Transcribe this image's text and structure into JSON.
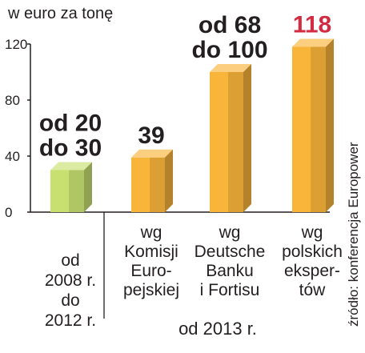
{
  "chart_data": {
    "type": "bar",
    "title": "",
    "ylabel": "w euro za tonę",
    "xlabel": "",
    "ylim": [
      0,
      120
    ],
    "yticks": [
      0,
      40,
      80,
      120
    ],
    "grid": false,
    "legend": "none",
    "bars": [
      {
        "low": 20,
        "high": 30,
        "value": 30,
        "label_lines": [
          "od 20",
          "do 30"
        ],
        "category_lines": [
          "od",
          "2008 r.",
          "do",
          "2012 r."
        ],
        "color": "#c8e070",
        "label_color": "#231f20"
      },
      {
        "value": 39,
        "label_lines": [
          "39"
        ],
        "category_lines": [
          "wg",
          "Komisji",
          "Euro-",
          "pejskiej"
        ],
        "color": "#f9b53a",
        "label_color": "#231f20"
      },
      {
        "low": 68,
        "high": 100,
        "value": 100,
        "label_lines": [
          "od 68",
          "do 100"
        ],
        "category_lines": [
          "wg",
          "Deutsche",
          "Banku",
          "i Fortisu"
        ],
        "color": "#f9b53a",
        "label_color": "#231f20"
      },
      {
        "value": 118,
        "label_lines": [
          "118"
        ],
        "category_lines": [
          "wg",
          "polskich",
          "eksper-",
          "tów"
        ],
        "color": "#f9b53a",
        "label_color": "#d22b42"
      }
    ],
    "group_label": "od 2013 r.",
    "source": "źródło: konferencja Europower"
  }
}
